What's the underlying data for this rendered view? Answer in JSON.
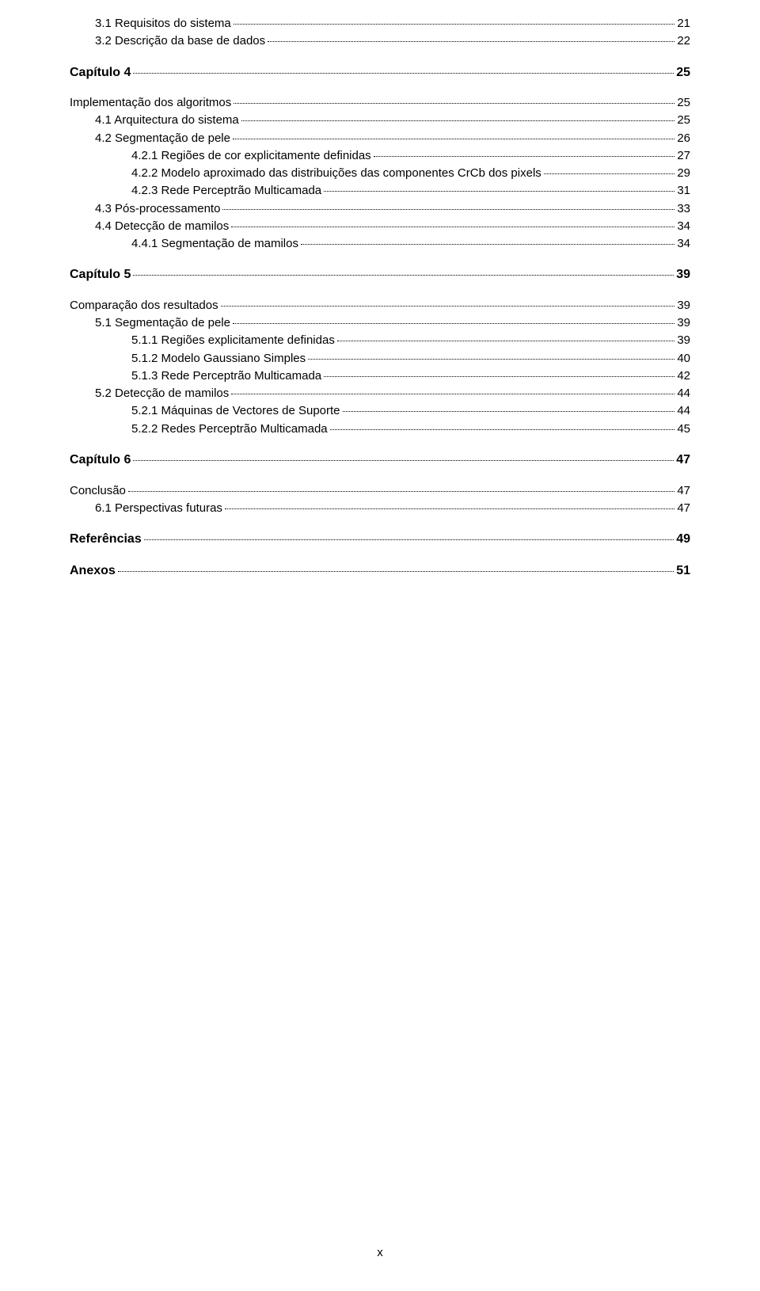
{
  "page_footer": "x",
  "entries": [
    {
      "level": 3,
      "label": "3.1  Requisitos do sistema",
      "page": "21",
      "extraClass": ""
    },
    {
      "level": 3,
      "label": "3.2  Descrição da base de dados",
      "page": "22",
      "extraClass": ""
    },
    {
      "level": 1,
      "label": "Capítulo 4",
      "page": "25",
      "extraClass": ""
    },
    {
      "level": 2,
      "label": "Implementação dos algoritmos",
      "page": "25",
      "extraClass": ""
    },
    {
      "level": 3,
      "label": "4.1  Arquitectura do sistema",
      "page": "25",
      "extraClass": ""
    },
    {
      "level": 3,
      "label": "4.2  Segmentação de pele",
      "page": "26",
      "extraClass": ""
    },
    {
      "level": 4,
      "label": "4.2.1 Regiões de cor explicitamente definidas",
      "page": "27",
      "extraClass": ""
    },
    {
      "level": 4,
      "label": "4.2.2 Modelo aproximado das distribuições das componentes CrCb dos pixels",
      "page": "29",
      "extraClass": ""
    },
    {
      "level": 4,
      "label": "4.2.3 Rede Perceptrão Multicamada",
      "page": "31",
      "extraClass": ""
    },
    {
      "level": 3,
      "label": "4.3  Pós-processamento",
      "page": "33",
      "extraClass": ""
    },
    {
      "level": 3,
      "label": "4.4  Detecção de mamilos",
      "page": "34",
      "extraClass": ""
    },
    {
      "level": 4,
      "label": "4.4.1 Segmentação de mamilos",
      "page": "34",
      "extraClass": ""
    },
    {
      "level": 1,
      "label": "Capítulo 5",
      "page": "39",
      "extraClass": ""
    },
    {
      "level": 2,
      "label": "Comparação dos resultados",
      "page": "39",
      "extraClass": ""
    },
    {
      "level": 3,
      "label": "5.1  Segmentação de pele",
      "page": "39",
      "extraClass": ""
    },
    {
      "level": 4,
      "label": "5.1.1 Regiões explicitamente definidas",
      "page": "39",
      "extraClass": ""
    },
    {
      "level": 4,
      "label": "5.1.2 Modelo Gaussiano Simples",
      "page": "40",
      "extraClass": ""
    },
    {
      "level": 4,
      "label": "5.1.3 Rede Perceptrão Multicamada",
      "page": "42",
      "extraClass": ""
    },
    {
      "level": 3,
      "label": "5.2  Detecção de mamilos",
      "page": "44",
      "extraClass": ""
    },
    {
      "level": 4,
      "label": "5.2.1 Máquinas de Vectores de Suporte",
      "page": "44",
      "extraClass": ""
    },
    {
      "level": 4,
      "label": "5.2.2 Redes Perceptrão Multicamada",
      "page": "45",
      "extraClass": ""
    },
    {
      "level": 1,
      "label": "Capítulo 6",
      "page": "47",
      "extraClass": ""
    },
    {
      "level": 2,
      "label": "Conclusão",
      "page": "47",
      "extraClass": ""
    },
    {
      "level": 3,
      "label": "6.1  Perspectivas futuras",
      "page": "47",
      "extraClass": ""
    },
    {
      "level": 1,
      "label": "Referências",
      "page": "49",
      "extraClass": ""
    },
    {
      "level": 1,
      "label": "Anexos",
      "page": "51",
      "extraClass": ""
    }
  ]
}
